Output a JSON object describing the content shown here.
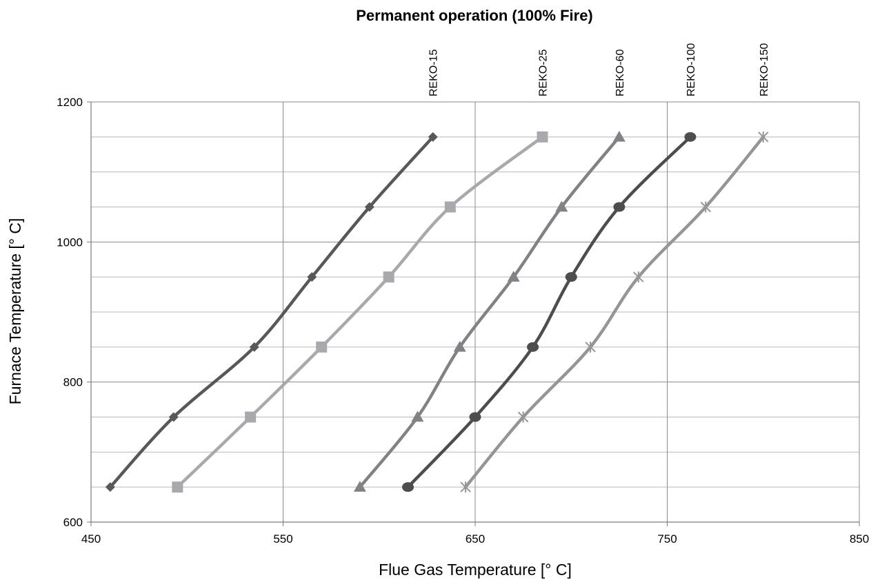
{
  "chart_data": {
    "type": "line",
    "title": "Permanent operation (100% Fire)",
    "xlabel": "Flue Gas Temperature [° C]",
    "ylabel": "Furnace Temperature [° C]",
    "xlim": [
      450,
      850
    ],
    "ylim": [
      600,
      1200
    ],
    "x_ticks": [
      450,
      550,
      650,
      750,
      850
    ],
    "y_ticks": [
      600,
      800,
      1000,
      1200
    ],
    "x_gridlines": [
      550,
      650,
      750,
      850
    ],
    "y_gridlines": [
      650,
      700,
      750,
      800,
      850,
      900,
      950,
      1000,
      1050,
      1100,
      1150,
      1200
    ],
    "legend": "labels at top of each curve",
    "series": [
      {
        "name": "REKO-15",
        "marker": "diamond",
        "color": "#58585a",
        "points": [
          [
            460,
            650
          ],
          [
            493,
            750
          ],
          [
            535,
            850
          ],
          [
            565,
            950
          ],
          [
            595,
            1050
          ],
          [
            628,
            1150
          ]
        ]
      },
      {
        "name": "REKO-25",
        "marker": "square",
        "color": "#a7a9ac",
        "points": [
          [
            495,
            650
          ],
          [
            533,
            750
          ],
          [
            570,
            850
          ],
          [
            605,
            950
          ],
          [
            637,
            1050
          ],
          [
            685,
            1150
          ]
        ]
      },
      {
        "name": "REKO-60",
        "marker": "triangle",
        "color": "#808285",
        "points": [
          [
            590,
            650
          ],
          [
            620,
            750
          ],
          [
            642,
            850
          ],
          [
            670,
            950
          ],
          [
            695,
            1050
          ],
          [
            725,
            1150
          ]
        ]
      },
      {
        "name": "REKO-100",
        "marker": "circle",
        "color": "#4d4d4f",
        "points": [
          [
            615,
            650
          ],
          [
            650,
            750
          ],
          [
            680,
            850
          ],
          [
            700,
            950
          ],
          [
            725,
            1050
          ],
          [
            762,
            1150
          ]
        ]
      },
      {
        "name": "REKO-150",
        "marker": "star",
        "color": "#939598",
        "points": [
          [
            645,
            650
          ],
          [
            675,
            750
          ],
          [
            710,
            850
          ],
          [
            735,
            950
          ],
          [
            770,
            1050
          ],
          [
            800,
            1150
          ]
        ]
      }
    ]
  }
}
